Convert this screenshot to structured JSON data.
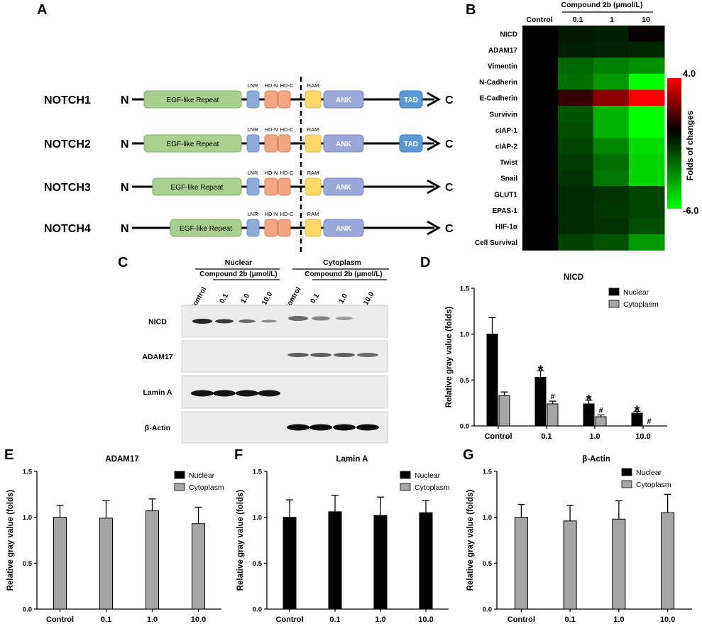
{
  "panels": {
    "A": {
      "label": "A",
      "proteins": [
        "NOTCH1",
        "NOTCH2",
        "NOTCH3",
        "NOTCH4"
      ],
      "n_term": "N",
      "c_term": "C",
      "domains": {
        "egf": "EGF-like Repeat",
        "lnr": "LNR",
        "hdn": "HD-N",
        "hdc": "HD-C",
        "ram": "RAM",
        "ank": "ANK",
        "tad": "TAD"
      },
      "colors": {
        "egf": "#a9d08e",
        "lnr": "#8faadc",
        "hd": "#f4a582",
        "ram": "#ffd966",
        "ank": "#9aa7d8",
        "tad": "#5b9bd5"
      }
    },
    "B": {
      "label": "B",
      "compound_label": "Compound 2b  (μmol/L)",
      "columns": [
        "Control",
        "0.1",
        "1",
        "10"
      ],
      "colorbar_title": "Folds of changes",
      "colorbar_max": "4.0",
      "colorbar_min": "-6.0",
      "colors": {
        "high": "#ff0000",
        "mid": "#000000",
        "low": "#00ff00"
      }
    },
    "C": {
      "label": "C",
      "group_nuclear": "Nuclear",
      "group_cytoplasm": "Cytoplasm",
      "compound_label": "Compound 2b  (μmol/L)",
      "lanes": [
        "Control",
        "0.1",
        "1.0",
        "10.0",
        "Control",
        "0.1",
        "1.0",
        "10.0"
      ],
      "blots": [
        "NICD",
        "ADAM17",
        "Lamin A",
        "β-Actin"
      ]
    },
    "D": {
      "label": "D"
    },
    "E": {
      "label": "E"
    },
    "F": {
      "label": "F"
    },
    "G": {
      "label": "G"
    }
  },
  "chart_data": [
    {
      "panel": "B",
      "type": "heatmap",
      "rows": [
        "NICD",
        "ADAM17",
        "Vimentin",
        "N-Cadherin",
        "E-Cadherin",
        "Survivin",
        "cIAP-1",
        "cIAP-2",
        "Twist",
        "Snail",
        "GLUT1",
        "EPAS-1",
        "HIF-1α",
        "Cell Survival"
      ],
      "columns": [
        "Control",
        "0.1",
        "1",
        "10"
      ],
      "values": [
        [
          0,
          -0.6,
          -0.7,
          0.1
        ],
        [
          0,
          -0.7,
          -0.8,
          -0.9
        ],
        [
          0,
          -2.4,
          -3.0,
          -3.4
        ],
        [
          0,
          -2.6,
          -3.6,
          -6.0
        ],
        [
          0,
          0.8,
          2.2,
          4.0
        ],
        [
          0,
          -2.0,
          -4.2,
          -6.0
        ],
        [
          0,
          -1.8,
          -4.2,
          -6.0
        ],
        [
          0,
          -1.6,
          -3.2,
          -5.2
        ],
        [
          0,
          -1.4,
          -2.6,
          -5.0
        ],
        [
          0,
          -1.2,
          -2.8,
          -5.0
        ],
        [
          0,
          -1.0,
          -1.2,
          -1.6
        ],
        [
          0,
          -1.0,
          -1.3,
          -1.6
        ],
        [
          0,
          -1.0,
          -1.2,
          -1.8
        ],
        [
          0,
          -1.5,
          -1.9,
          -3.6
        ]
      ],
      "colorbar_range": [
        -6.0,
        4.0
      ]
    },
    {
      "panel": "D",
      "type": "bar",
      "title": "NICD",
      "ylabel": "Relative gray value (folds)",
      "categories": [
        "Control",
        "0.1",
        "1.0",
        "10.0"
      ],
      "ylim": [
        0,
        1.5
      ],
      "yticks": [
        "0.0",
        "0.5",
        "1.0",
        "1.5"
      ],
      "legend_position": "top-right",
      "series": [
        {
          "name": "Nuclear",
          "color": "#000000",
          "values": [
            1.0,
            0.53,
            0.24,
            0.14
          ],
          "errors": [
            0.18,
            0.07,
            0.04,
            0.02
          ],
          "marks": [
            "",
            "*",
            "*",
            "*"
          ]
        },
        {
          "name": "Cytoplasm",
          "color": "#a6a6a6",
          "values": [
            0.33,
            0.24,
            0.1,
            0.0
          ],
          "errors": [
            0.04,
            0.03,
            0.02,
            0.0
          ],
          "marks": [
            "",
            "#",
            "#",
            "#"
          ]
        }
      ]
    },
    {
      "panel": "E",
      "type": "bar",
      "title": "ADAM17",
      "ylabel": "Relative gray value (folds)",
      "categories": [
        "Control",
        "0.1",
        "1.0",
        "10.0"
      ],
      "ylim": [
        0,
        1.5
      ],
      "yticks": [
        "0.0",
        "0.5",
        "1.0",
        "1.5"
      ],
      "legend_position": "top-right",
      "legend": [
        "Nuclear",
        "Cytoplasm"
      ],
      "series": [
        {
          "name": "Cytoplasm",
          "color": "#a6a6a6",
          "values": [
            1.0,
            0.99,
            1.07,
            0.93
          ],
          "errors": [
            0.13,
            0.19,
            0.13,
            0.18
          ]
        }
      ]
    },
    {
      "panel": "F",
      "type": "bar",
      "title": "Lamin A",
      "ylabel": "Relative gray value (folds)",
      "categories": [
        "Control",
        "0.1",
        "1.0",
        "10.0"
      ],
      "ylim": [
        0,
        1.5
      ],
      "yticks": [
        "0.0",
        "0.5",
        "1.0",
        "1.5"
      ],
      "legend_position": "top-right",
      "legend": [
        "Nuclear",
        "Cytoplasm"
      ],
      "series": [
        {
          "name": "Nuclear",
          "color": "#000000",
          "values": [
            1.0,
            1.06,
            1.02,
            1.05
          ],
          "errors": [
            0.19,
            0.18,
            0.2,
            0.13
          ]
        }
      ]
    },
    {
      "panel": "G",
      "type": "bar",
      "title": "β-Actin",
      "ylabel": "Relative gray value (folds)",
      "categories": [
        "Control",
        "0.1",
        "1.0",
        "10.0"
      ],
      "ylim": [
        0,
        1.5
      ],
      "yticks": [
        "0.0",
        "0.5",
        "1.0",
        "1.5"
      ],
      "legend_position": "top-right",
      "legend": [
        "Nuclear",
        "Cytoplasm"
      ],
      "series": [
        {
          "name": "Cytoplasm",
          "color": "#a6a6a6",
          "values": [
            1.0,
            0.96,
            0.98,
            1.05
          ],
          "errors": [
            0.14,
            0.17,
            0.2,
            0.2
          ]
        }
      ]
    }
  ]
}
